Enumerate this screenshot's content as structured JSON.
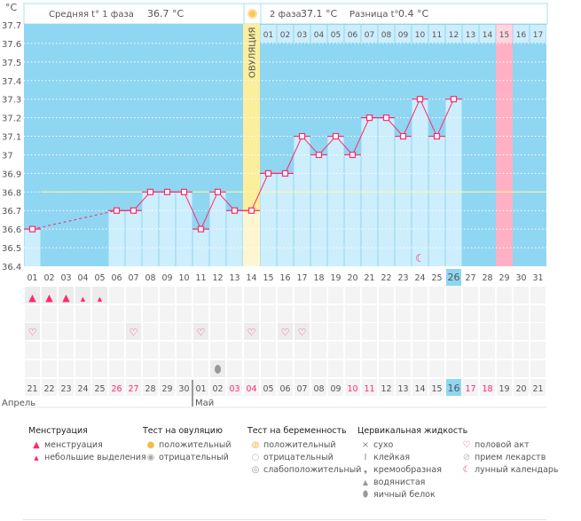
{
  "header": {
    "phase1_label": "Средняя t° 1 фаза",
    "phase1_value": "36.7 °C",
    "phase2_label": "2 фаза",
    "phase2_value": "37.1 °C",
    "diff_label": "Разница t°",
    "diff_value": "0.4 °C"
  },
  "ovulation_label": "ОВУЛЯЦИЯ",
  "chart_data": {
    "type": "line",
    "ylabel": "°C",
    "ylim": [
      36.4,
      37.7
    ],
    "yticks": [
      "37.7",
      "37.6",
      "37.5",
      "37.4",
      "37.3",
      "37.2",
      "37.1",
      "37",
      "36.9",
      "36.8",
      "36.7",
      "36.6",
      "36.5",
      "36.4"
    ],
    "grid": true,
    "cycle_days": [
      "01",
      "02",
      "03",
      "04",
      "05",
      "06",
      "07",
      "08",
      "09",
      "10",
      "11",
      "12",
      "13",
      "14",
      "15",
      "16",
      "17",
      "18",
      "19",
      "20",
      "21",
      "22",
      "23",
      "24",
      "25",
      "26",
      "27",
      "28",
      "29",
      "30",
      "31"
    ],
    "temperatures": [
      36.6,
      null,
      null,
      null,
      null,
      36.7,
      36.7,
      36.8,
      36.8,
      36.8,
      36.6,
      36.8,
      36.7,
      36.7,
      36.9,
      36.9,
      37.1,
      37.0,
      37.1,
      37.0,
      37.2,
      37.2,
      37.1,
      37.3,
      37.1,
      37.3,
      null,
      null,
      null,
      null,
      null
    ],
    "coverline": 36.8,
    "ovulation_day": 14,
    "today_day": 26,
    "expected_period_day": 29,
    "moon_day": 24,
    "luteal_start_day": 15,
    "luteal_days": [
      "01",
      "02",
      "03",
      "04",
      "05",
      "06",
      "07",
      "08",
      "09",
      "10",
      "11",
      "12",
      "13",
      "14",
      "15",
      "16",
      "17"
    ],
    "colors": {
      "background": "#8fd6f2",
      "bar": "#cdeefc",
      "line": "#ff2a6a",
      "ovulation": "#fbee9c",
      "expected_period": "#ffb0c4",
      "coverline": "#fff59a"
    }
  },
  "rows": {
    "menstruation": {
      "1": "heavy",
      "2": "heavy",
      "3": "heavy",
      "4": "light",
      "5": "light"
    },
    "intercourse_days": [
      1,
      7,
      11,
      14,
      16,
      17
    ],
    "cervical_fluid": {
      "12": "egg-white"
    }
  },
  "dates": {
    "labels": [
      "21",
      "22",
      "23",
      "24",
      "25",
      "26",
      "27",
      "28",
      "29",
      "30",
      "01",
      "02",
      "03",
      "04",
      "05",
      "06",
      "07",
      "08",
      "09",
      "10",
      "11",
      "12",
      "13",
      "14",
      "15",
      "16",
      "17",
      "18",
      "19",
      "20",
      "21"
    ],
    "weekend_idx": [
      6,
      7,
      13,
      14,
      20,
      21,
      27,
      28
    ],
    "today_idx": 26,
    "months": [
      {
        "label": "Апрель",
        "start": 1
      },
      {
        "label": "Май",
        "start": 11
      }
    ]
  },
  "legend": {
    "menstruation": {
      "title": "Менструация",
      "items": [
        "менструация",
        "небольшие выделения"
      ]
    },
    "ovulation_test": {
      "title": "Тест на овуляцию",
      "items": [
        "положительный",
        "отрицательный"
      ]
    },
    "pregnancy_test": {
      "title": "Тест на беременность",
      "items": [
        "положительный",
        "отрицательный",
        "слабоположительный"
      ]
    },
    "cervical_fluid": {
      "title": "Цервикальная жидкость",
      "items": [
        "сухо",
        "клейкая",
        "кремообразная",
        "водянистая",
        "яичный белок"
      ]
    },
    "other": {
      "items": [
        "половой акт",
        "прием лекарств",
        "лунный календарь"
      ]
    }
  }
}
